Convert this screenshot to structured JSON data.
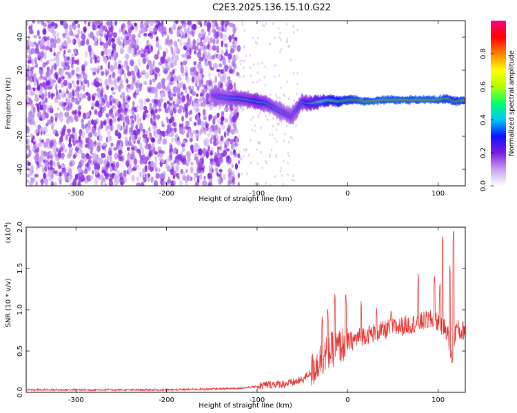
{
  "title": "C2E3.2025.136.15.10.G22",
  "chart_data": [
    {
      "type": "heatmap",
      "xlabel": "Height of straight line (km)",
      "ylabel": "Frequency (Hz)",
      "xlim": [
        -355,
        130
      ],
      "ylim": [
        -50,
        50
      ],
      "xticks": [
        -300,
        -200,
        -100,
        0,
        100
      ],
      "yticks": [
        -40,
        -20,
        0,
        20,
        40
      ],
      "colorbar": {
        "label": "Normalized spectral amplitude",
        "range": [
          0,
          1
        ],
        "ticks": [
          0.0,
          0.2,
          0.4,
          0.6,
          0.8
        ],
        "colormap": [
          "#ffffff",
          "#c7a0f0",
          "#7d1ae0",
          "#1010ff",
          "#00c8ff",
          "#00ff66",
          "#b0ff00",
          "#ffff00",
          "#ff8000",
          "#ff0000",
          "#ff0080"
        ]
      },
      "noise_region_x": [
        -355,
        -120
      ],
      "signal_track": {
        "x": [
          -150,
          -140,
          -130,
          -120,
          -110,
          -100,
          -90,
          -80,
          -70,
          -62,
          -55,
          -50,
          -45,
          -40,
          -30,
          -20,
          -10,
          0,
          10,
          20,
          40,
          60,
          80,
          100,
          110,
          118,
          130
        ],
        "y": [
          5,
          4,
          3,
          3,
          2,
          1,
          0,
          -3,
          -6,
          -8,
          -3,
          1,
          0,
          0,
          1,
          2,
          1,
          2,
          2,
          1,
          2,
          2,
          2,
          2,
          3,
          1,
          2
        ],
        "amplitude": [
          0.3,
          0.4,
          0.45,
          0.5,
          0.5,
          0.55,
          0.5,
          0.45,
          0.4,
          0.35,
          0.45,
          0.5,
          0.55,
          0.6,
          0.7,
          0.8,
          0.85,
          0.9,
          0.92,
          0.95,
          0.95,
          0.95,
          0.95,
          0.95,
          0.92,
          0.9,
          0.95
        ]
      }
    },
    {
      "type": "line",
      "xlabel": "Height of straight line (km)",
      "ylabel": "SNR (10 * v/v)",
      "y_multiplier": "(x10",
      "y_multiplier_exp": "4",
      "y_multiplier_close": ")",
      "xlim": [
        -355,
        130
      ],
      "ylim": [
        0,
        2.0
      ],
      "xticks": [
        -300,
        -200,
        -100,
        0,
        100
      ],
      "yticks": [
        0.0,
        0.5,
        1.0,
        1.5,
        2.0
      ],
      "color": "#e83030",
      "x": [
        -355,
        -300,
        -250,
        -200,
        -150,
        -120,
        -100,
        -90,
        -80,
        -70,
        -60,
        -50,
        -40,
        -30,
        -20,
        -10,
        0,
        10,
        20,
        30,
        40,
        50,
        60,
        70,
        80,
        90,
        100,
        105,
        110,
        115,
        120,
        125,
        130
      ],
      "y": [
        0.03,
        0.03,
        0.03,
        0.03,
        0.04,
        0.05,
        0.07,
        0.09,
        0.1,
        0.1,
        0.12,
        0.15,
        0.25,
        0.4,
        0.5,
        0.55,
        0.6,
        0.65,
        0.7,
        0.72,
        0.75,
        0.78,
        0.8,
        0.82,
        0.85,
        0.88,
        0.85,
        0.8,
        0.75,
        0.4,
        0.8,
        0.72,
        0.78
      ],
      "peaks": [
        {
          "x": -28,
          "y": 0.95
        },
        {
          "x": -22,
          "y": 1.05
        },
        {
          "x": -14,
          "y": 1.22
        },
        {
          "x": -2,
          "y": 1.23
        },
        {
          "x": 15,
          "y": 1.12
        },
        {
          "x": 32,
          "y": 1.05
        },
        {
          "x": 48,
          "y": 1.03
        },
        {
          "x": 78,
          "y": 1.45
        },
        {
          "x": 96,
          "y": 1.45
        },
        {
          "x": 102,
          "y": 1.35
        },
        {
          "x": 105,
          "y": 1.92
        },
        {
          "x": 113,
          "y": 1.55
        },
        {
          "x": 117,
          "y": 2.0
        }
      ]
    }
  ]
}
